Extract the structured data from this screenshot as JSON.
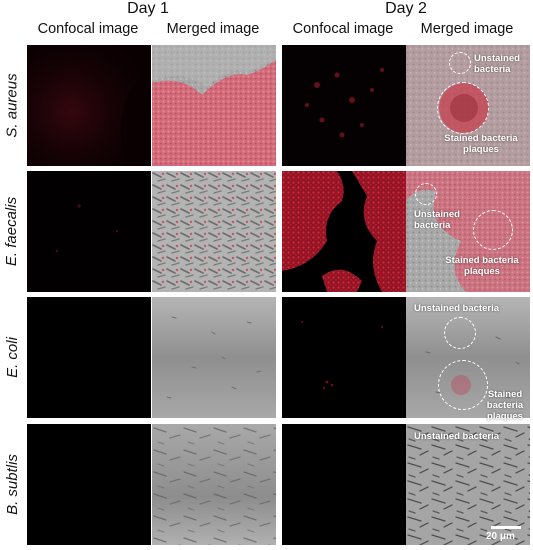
{
  "figure": {
    "days": [
      "Day 1",
      "Day 2"
    ],
    "columns": [
      "Confocal image",
      "Merged image",
      "Confocal image",
      "Merged image"
    ],
    "rows": [
      {
        "species": "S. aureus"
      },
      {
        "species": "E. faecalis"
      },
      {
        "species": "E. coli"
      },
      {
        "species": "B. subtlis"
      }
    ],
    "annotations": {
      "s_aureus_unstained": "Unstained bacteria",
      "s_aureus_stained": "Stained bacteria plaques",
      "e_faecalis_unstained": "Unstained bacteria",
      "e_faecalis_stained": "Stained bacteria plaques",
      "e_coli_unstained": "Unstained bacteria",
      "e_coli_stained": "Stained bacteria plaques",
      "b_subtilis_unstained": "Unstained bacteria"
    },
    "scale_bar": "20 μm"
  },
  "colors": {
    "stain": "#d3203a",
    "background": "#ffffff"
  }
}
